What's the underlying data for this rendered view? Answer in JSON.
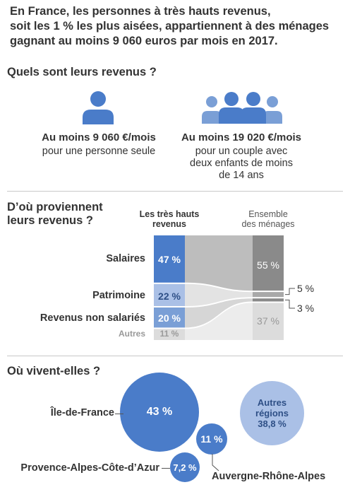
{
  "intro": {
    "line1": "En France, les personnes à très hauts revenus,",
    "line2": "soit les 1 % les plus aisées, appartiennent à des ménages",
    "line3": "gagnant au moins 9 060 euros par mois en 2017."
  },
  "incomes": {
    "title": "Quels sont leurs revenus ?",
    "single": {
      "icon": "person-icon",
      "amount": "Au moins 9 060 €/mois",
      "desc": "pour une personne seule"
    },
    "family": {
      "icon": "family-icon",
      "amount": "Au moins 19 020 €/mois",
      "desc_line1": "pour un couple avec",
      "desc_line2": "deux enfants de moins",
      "desc_line3": "de 14 ans"
    }
  },
  "sources": {
    "title_line1": "D’où proviennent",
    "title_line2": "leurs revenus ?",
    "col_rich_line1": "Les très hauts",
    "col_rich_line2": "revenus",
    "col_all_line1": "Ensemble",
    "col_all_line2": "des ménages",
    "rows": [
      {
        "label": "Salaires",
        "rich": 47,
        "rich_label": "47 %",
        "all": 55,
        "all_label": "55 %"
      },
      {
        "label": "Patrimoine",
        "rich": 22,
        "rich_label": "22 %",
        "all": 5,
        "all_label": "5 %"
      },
      {
        "label": "Revenus non salariés",
        "rich": 20,
        "rich_label": "20 %",
        "all": 3,
        "all_label": "3 %"
      },
      {
        "label": "Autres",
        "rich": 11,
        "rich_label": "11 %",
        "all": 37,
        "all_label": "37 %"
      }
    ]
  },
  "regions": {
    "title": "Où vivent-elles ?",
    "items": [
      {
        "name": "Île-de-France",
        "value": "43 %",
        "share": 43
      },
      {
        "name": "Auvergne-Rhône-Alpes",
        "value": "11 %",
        "share": 11
      },
      {
        "name": "Provence-Alpes-Côte-d’Azur",
        "value": "7,2 %",
        "share": 7.2
      },
      {
        "name_line1": "Autres",
        "name_line2": "régions",
        "value": "38,8 %",
        "share": 38.8
      }
    ]
  },
  "colors": {
    "dark_blue": "#4a7cc9",
    "mid_blue": "#7a9fd6",
    "light_blue": "#aac0e6",
    "pale_blue": "#c9d7ef",
    "grey_dark": "#8a8a8a",
    "grey_mid": "#a9a9a9",
    "grey_light": "#dcdcdc",
    "flow": "#e6e6e6"
  }
}
